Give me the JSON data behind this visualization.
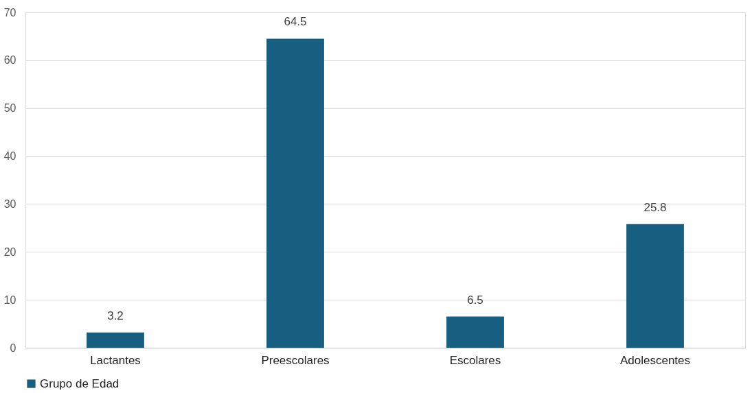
{
  "chart_data": {
    "type": "bar",
    "categories": [
      "Lactantes",
      "Preescolares",
      "Escolares",
      "Adolescentes"
    ],
    "series": [
      {
        "name": "Grupo de Edad",
        "color": "#175f80",
        "values": [
          3.2,
          64.5,
          6.5,
          25.8
        ]
      }
    ],
    "ylim": [
      0,
      70
    ],
    "yticks": [
      0,
      10,
      20,
      30,
      40,
      50,
      60,
      70
    ],
    "grid": "y",
    "legend": "bottom",
    "data_labels": true
  }
}
